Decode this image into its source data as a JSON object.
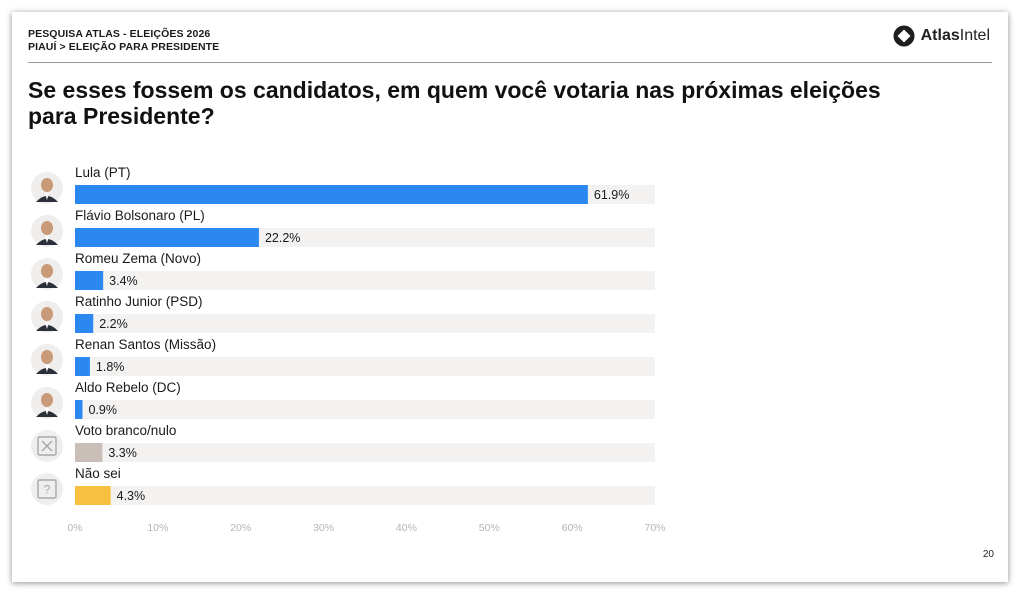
{
  "header": {
    "line1": "PESQUISA ATLAS - ELEIÇÕES 2026",
    "line2": "PIAUÍ > ELEIÇÃO PARA PRESIDENTE",
    "logo_text_a": "Atlas",
    "logo_text_b": "Intel"
  },
  "page_number": "20",
  "colors": {
    "candidate": "#2b88f0",
    "blank_null": "#c9bfb8",
    "dont_know": "#f7c03e",
    "track": "#f3f2f1"
  },
  "chart_data": {
    "type": "bar",
    "orientation": "horizontal",
    "title": "Se esses fossem os candidatos, em quem você votaria nas próximas eleições para Presidente?",
    "categories": [
      "Lula (PT)",
      "Flávio Bolsonaro (PL)",
      "Romeu Zema (Novo)",
      "Ratinho Junior (PSD)",
      "Renan Santos (Missão)",
      "Aldo Rebelo (DC)",
      "Voto branco/nulo",
      "Não sei"
    ],
    "values": [
      61.9,
      22.2,
      3.4,
      2.2,
      1.8,
      0.9,
      3.3,
      4.3
    ],
    "value_labels": [
      "61.9%",
      "22.2%",
      "3.4%",
      "2.2%",
      "1.8%",
      "0.9%",
      "3.3%",
      "4.3%"
    ],
    "bar_colors": [
      "#2b88f0",
      "#2b88f0",
      "#2b88f0",
      "#2b88f0",
      "#2b88f0",
      "#2b88f0",
      "#c9bfb8",
      "#f7c03e"
    ],
    "icons": [
      "avatar-lula",
      "avatar-flavio-bolsonaro",
      "avatar-romeu-zema",
      "avatar-ratinho-junior",
      "avatar-renan-santos",
      "avatar-aldo-rebelo",
      "x-box-icon",
      "question-box-icon"
    ],
    "xlim": [
      0,
      70
    ],
    "xticks": [
      "0%",
      "10%",
      "20%",
      "30%",
      "40%",
      "50%",
      "60%",
      "70%"
    ],
    "grid": false,
    "legend": "none"
  }
}
